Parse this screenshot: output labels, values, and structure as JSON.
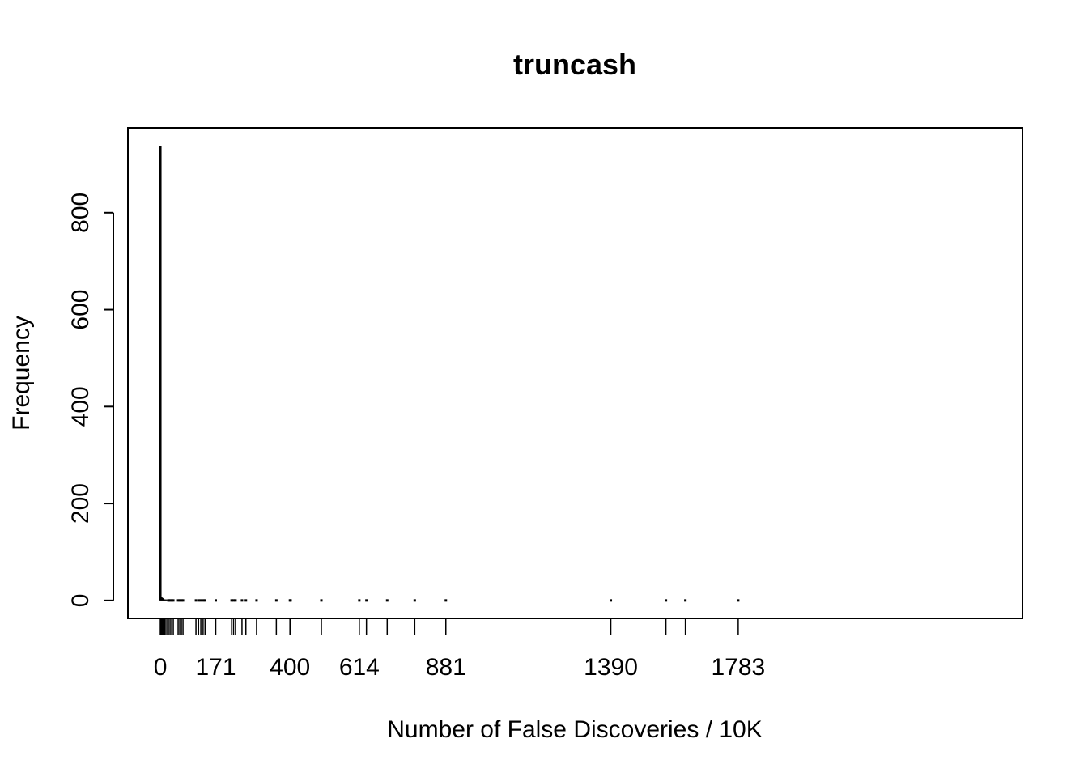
{
  "chart_data": {
    "type": "bar",
    "title": "truncash",
    "xlabel": "Number of False Discoveries / 10K",
    "ylabel": "Frequency",
    "xlim": [
      -100,
      2660
    ],
    "ylim": [
      -37,
      975
    ],
    "y_ticks": [
      0,
      200,
      400,
      600,
      800
    ],
    "x_ticks": [
      0,
      171,
      400,
      614,
      881,
      1390,
      1783
    ],
    "bars": [
      {
        "x": 0,
        "count": 938
      },
      {
        "x": 3,
        "count": 8
      },
      {
        "x": 6,
        "count": 5
      },
      {
        "x": 9,
        "count": 3
      },
      {
        "x": 12,
        "count": 2
      },
      {
        "x": 15,
        "count": 2
      },
      {
        "x": 20,
        "count": 2
      },
      {
        "x": 25,
        "count": 1
      },
      {
        "x": 30,
        "count": 1
      },
      {
        "x": 35,
        "count": 1
      },
      {
        "x": 40,
        "count": 1
      },
      {
        "x": 55,
        "count": 1
      },
      {
        "x": 60,
        "count": 1
      },
      {
        "x": 65,
        "count": 1
      },
      {
        "x": 70,
        "count": 1
      },
      {
        "x": 110,
        "count": 1
      },
      {
        "x": 118,
        "count": 1
      },
      {
        "x": 125,
        "count": 1
      },
      {
        "x": 132,
        "count": 1
      },
      {
        "x": 138,
        "count": 1
      },
      {
        "x": 171,
        "count": 1
      },
      {
        "x": 220,
        "count": 1
      },
      {
        "x": 226,
        "count": 1
      },
      {
        "x": 232,
        "count": 1
      },
      {
        "x": 252,
        "count": 1
      },
      {
        "x": 264,
        "count": 1
      },
      {
        "x": 297,
        "count": 1
      },
      {
        "x": 358,
        "count": 1
      },
      {
        "x": 400,
        "count": 1
      },
      {
        "x": 402,
        "count": 1
      },
      {
        "x": 497,
        "count": 1
      },
      {
        "x": 614,
        "count": 1
      },
      {
        "x": 636,
        "count": 1
      },
      {
        "x": 700,
        "count": 1
      },
      {
        "x": 785,
        "count": 1
      },
      {
        "x": 881,
        "count": 1
      },
      {
        "x": 1390,
        "count": 1
      },
      {
        "x": 1560,
        "count": 1
      },
      {
        "x": 1620,
        "count": 1
      },
      {
        "x": 1783,
        "count": 1
      }
    ],
    "rug": [
      0,
      3,
      6,
      9,
      12,
      15,
      20,
      25,
      30,
      35,
      40,
      55,
      60,
      65,
      70,
      110,
      118,
      125,
      132,
      138,
      171,
      220,
      226,
      232,
      252,
      264,
      297,
      358,
      400,
      402,
      497,
      614,
      636,
      700,
      785,
      881,
      1390,
      1560,
      1620,
      1783
    ],
    "grid": false,
    "box": true
  }
}
